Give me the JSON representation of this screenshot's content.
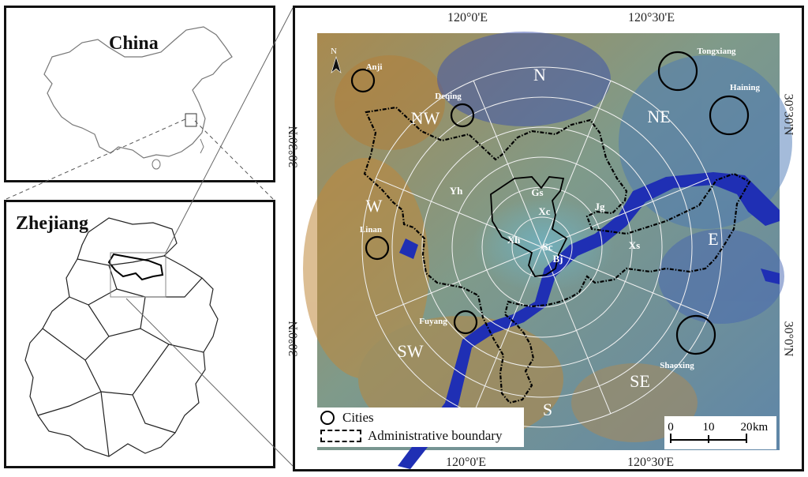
{
  "china_panel": {
    "title": "China"
  },
  "zhejiang_panel": {
    "title": "Zhejiang"
  },
  "main_map": {
    "coords": {
      "top": [
        "120°0'E",
        "120°30'E"
      ],
      "bottom": [
        "120°0'E",
        "120°30'E"
      ],
      "left": [
        "30°30'N",
        "30°0'N"
      ],
      "right": [
        "30°30'N",
        "30°0'N"
      ]
    },
    "north_arrow": "N",
    "directions": [
      "N",
      "NE",
      "E",
      "SE",
      "S",
      "SW",
      "W",
      "NW"
    ],
    "districts": [
      "Yh",
      "Gs",
      "Xc",
      "Jg",
      "Xh",
      "Sc",
      "Bj",
      "Xs"
    ],
    "cities": [
      "Anji",
      "Deqing",
      "Tongxiang",
      "Haining",
      "Linan",
      "Fuyang",
      "Shaoxing"
    ],
    "legend": {
      "cities": "Cities",
      "boundary": "Administrative boundary"
    },
    "scale_bar": {
      "ticks": [
        "0",
        "10",
        "20"
      ],
      "unit": "km"
    }
  },
  "colors": {
    "water": "#1f2fb4",
    "vegetation": "#b38a4a",
    "urban": "#5aa0b8",
    "ring": "#f2f2f2",
    "boundary": "#000000"
  }
}
